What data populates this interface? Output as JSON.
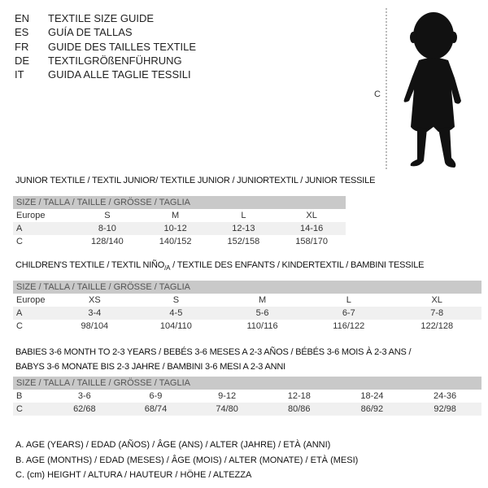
{
  "languages": [
    {
      "code": "EN",
      "title": "TEXTILE SIZE GUIDE"
    },
    {
      "code": "ES",
      "title": "GUÍA DE TALLAS"
    },
    {
      "code": "FR",
      "title": "GUIDE DES TAILLES TEXTILE"
    },
    {
      "code": "DE",
      "title": "TEXTILGRÖßENFÜHRUNG"
    },
    {
      "code": "IT",
      "title": "GUIDA ALLE TAGLIE TESSILI"
    }
  ],
  "figure": {
    "label": "C"
  },
  "size_header": "SIZE / TALLA / TAILLE / GRÖSSE / TAGLIA",
  "junior": {
    "title": "JUNIOR TEXTILE / TEXTIL JUNIOR/ TEXTILE JUNIOR / JUNIORTEXTIL / JUNIOR TESSILE",
    "rows": [
      {
        "label": "Europe",
        "values": [
          "S",
          "M",
          "L",
          "XL"
        ]
      },
      {
        "label": "A",
        "values": [
          "8-10",
          "10-12",
          "12-13",
          "14-16"
        ]
      },
      {
        "label": "C",
        "values": [
          "128/140",
          "140/152",
          "152/158",
          "158/170"
        ]
      }
    ]
  },
  "children": {
    "title_a": "CHILDREN'S TEXTILE / TEXTIL NIÑO",
    "title_sub": "/A",
    "title_b": " / TEXTILE DES ENFANTS / KINDERTEXTIL / BAMBINI TESSILE",
    "rows": [
      {
        "label": "Europe",
        "values": [
          "XS",
          "S",
          "M",
          "L",
          "XL"
        ]
      },
      {
        "label": "A",
        "values": [
          "3-4",
          "4-5",
          "5-6",
          "6-7",
          "7-8"
        ]
      },
      {
        "label": "C",
        "values": [
          "98/104",
          "104/110",
          "110/116",
          "116/122",
          "122/128"
        ]
      }
    ]
  },
  "babies": {
    "title_line1": "BABIES 3-6 MONTH TO 2-3 YEARS / BEBÉS 3-6 MESES A 2-3 AÑOS / BÉBÉS 3-6 MOIS À 2-3 ANS /",
    "title_line2": "BABYS 3-6 MONATE BIS 2-3 JAHRE / BAMBINI 3-6 MESI A 2-3 ANNI",
    "rows": [
      {
        "label": "B",
        "values": [
          "3-6",
          "6-9",
          "9-12",
          "12-18",
          "18-24",
          "24-36"
        ]
      },
      {
        "label": "C",
        "values": [
          "62/68",
          "68/74",
          "74/80",
          "80/86",
          "86/92",
          "92/98"
        ]
      }
    ]
  },
  "legend": [
    "A. AGE (YEARS) / EDAD (AÑOS) / ÂGE (ANS) / ALTER (JAHRE) / ETÀ (ANNI)",
    "B. AGE (MONTHS) / EDAD (MESES) / ÂGE (MOIS) / ALTER (MONATE) / ETÀ (MESI)",
    "C. (cm) HEIGHT / ALTURA / HAUTEUR / HÖHE / ALTEZZA"
  ]
}
